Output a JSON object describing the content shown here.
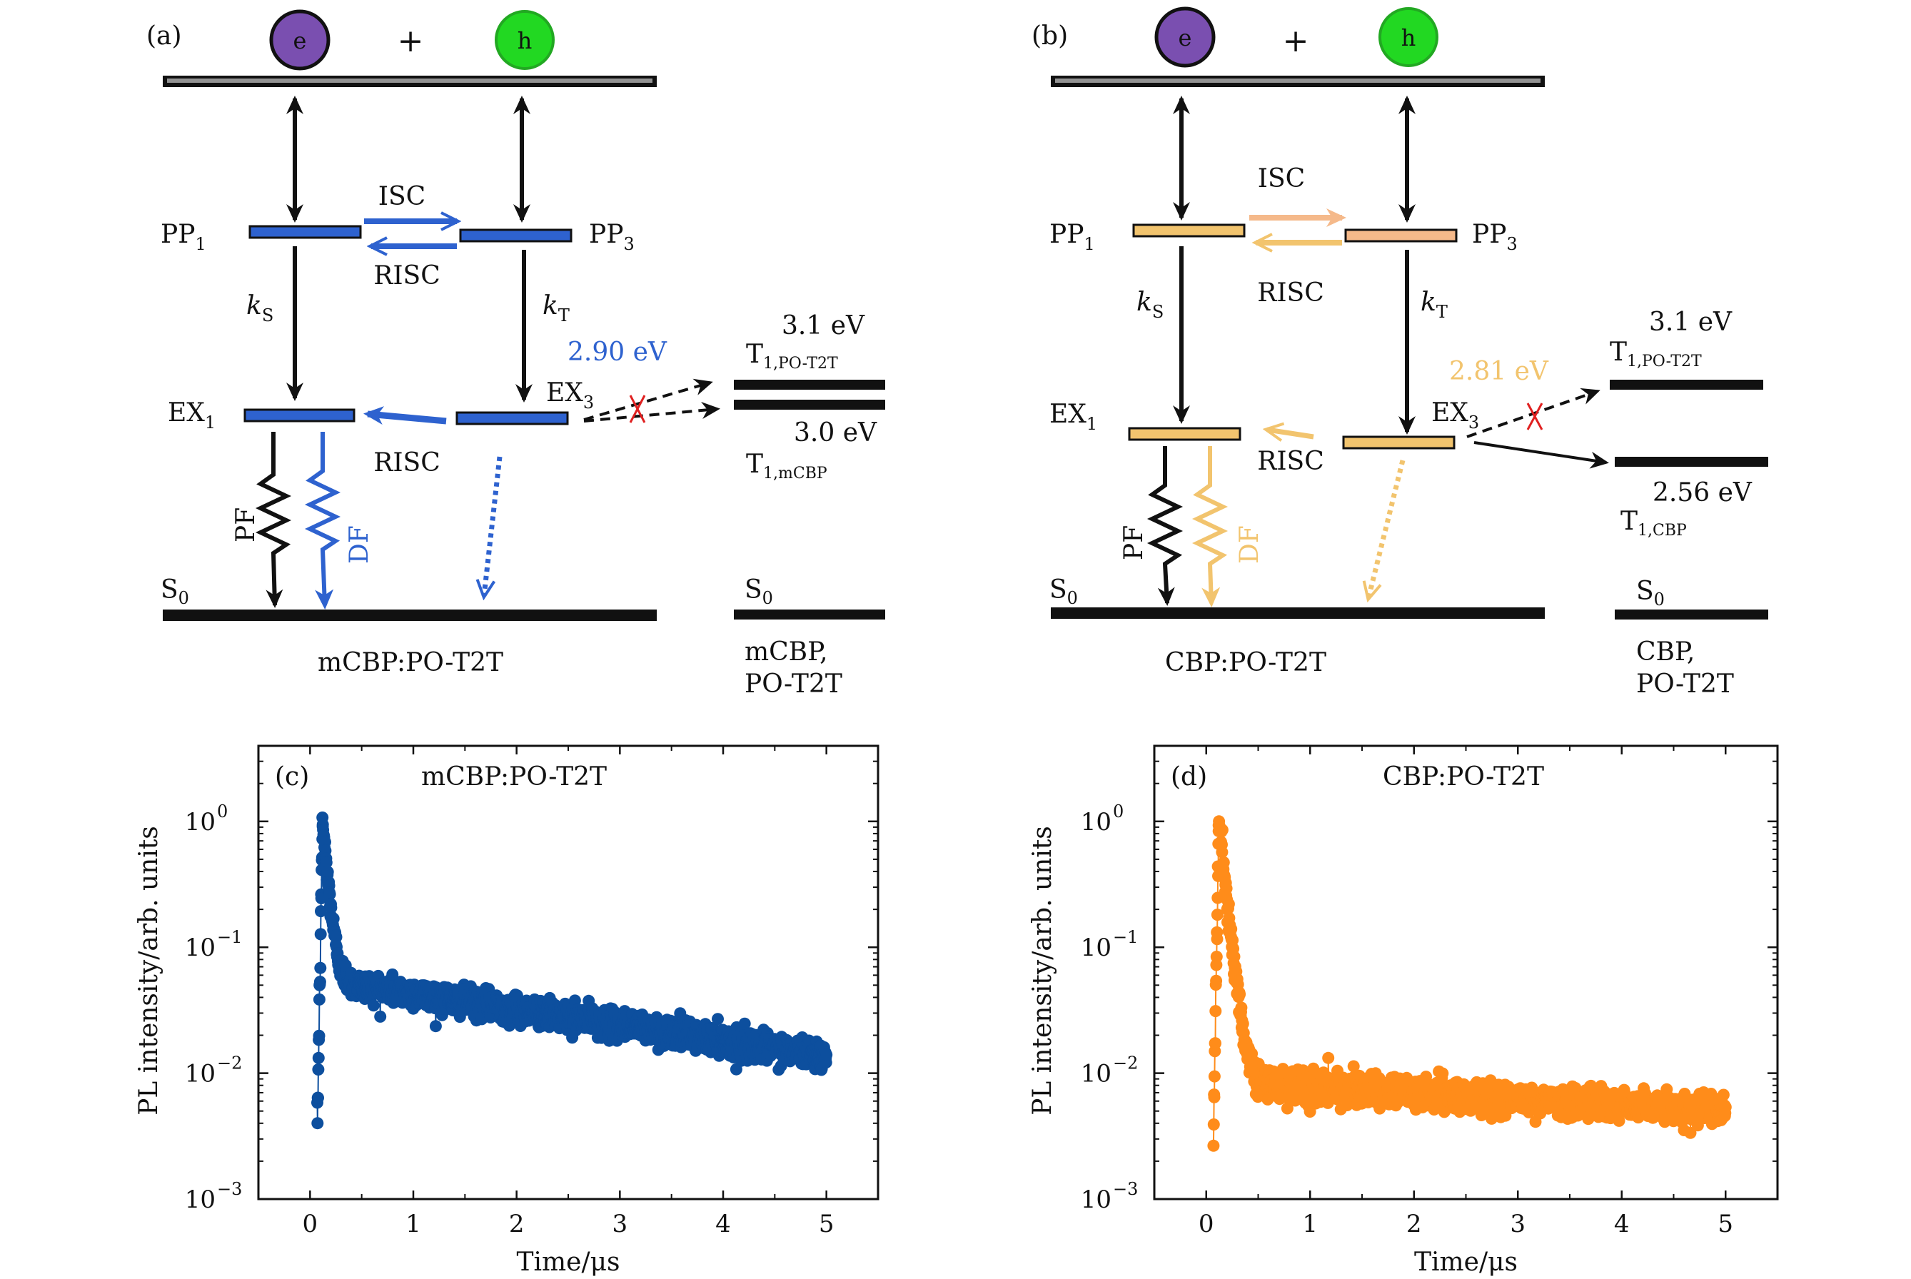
{
  "colors": {
    "blue": "#2e62cf",
    "blue_dark": "#0d4f9e",
    "orange_fill": "#f2c46e",
    "orange_pale": "#f5b98a",
    "orange_data": "#ff8c1a",
    "electron": "#7a4fb0",
    "hole": "#22d822",
    "cross": "#e02020"
  },
  "panel_a": {
    "label": "(a)",
    "electron": "e",
    "plus": "+",
    "hole": "h",
    "pp1": "PP",
    "pp1_sub": "1",
    "pp3": "PP",
    "pp3_sub": "3",
    "isc": "ISC",
    "risc_top": "RISC",
    "ks": "k",
    "ks_sub": "S",
    "kt": "k",
    "kt_sub": "T",
    "ex1": "EX",
    "ex1_sub": "1",
    "ex3": "EX",
    "ex3_sub": "3",
    "risc_mid": "RISC",
    "gap_energy": "2.90 eV",
    "t_high_energy": "3.1 eV",
    "t_high": "T",
    "t_high_sub": "1,PO-T2T",
    "t_low_energy": "3.0 eV",
    "t_low": "T",
    "t_low_sub": "1,mCBP",
    "pf": "PF",
    "df": "DF",
    "s0": "S",
    "s0_sub": "0",
    "s0_right": "S",
    "s0_right_sub": "0",
    "caption": "mCBP:PO-T2T",
    "right_caption_1": "mCBP,",
    "right_caption_2": "PO-T2T"
  },
  "panel_b": {
    "label": "(b)",
    "electron": "e",
    "plus": "+",
    "hole": "h",
    "pp1": "PP",
    "pp1_sub": "1",
    "pp3": "PP",
    "pp3_sub": "3",
    "isc": "ISC",
    "risc_top": "RISC",
    "ks": "k",
    "ks_sub": "S",
    "kt": "k",
    "kt_sub": "T",
    "ex1": "EX",
    "ex1_sub": "1",
    "ex3": "EX",
    "ex3_sub": "3",
    "risc_mid": "RISC",
    "gap_energy": "2.81 eV",
    "t_high_energy": "3.1 eV",
    "t_high": "T",
    "t_high_sub": "1,PO-T2T",
    "t_low_energy": "2.56 eV",
    "t_low": "T",
    "t_low_sub": "1,CBP",
    "pf": "PF",
    "df": "DF",
    "s0": "S",
    "s0_sub": "0",
    "s0_right": "S",
    "s0_right_sub": "0",
    "caption": "CBP:PO-T2T",
    "right_caption_1": "CBP,",
    "right_caption_2": "PO-T2T"
  },
  "chart_data": [
    {
      "id": "c",
      "type": "scatter",
      "panel_label": "(c)",
      "title": "mCBP:PO-T2T",
      "xlabel": "Time/μs",
      "ylabel": "PL intensity/arb. units",
      "xlim": [
        -0.5,
        5.5
      ],
      "ylim_log10": [
        -3,
        0.6
      ],
      "xticks": [
        0,
        1,
        2,
        3,
        4,
        5
      ],
      "xtick_labels": [
        "0",
        "1",
        "2",
        "3",
        "4",
        "5"
      ],
      "ytick_exponents": [
        0,
        -1,
        -2,
        -3
      ],
      "ytick_base": "10",
      "ytick_exp_labels": [
        "0",
        "−1",
        "−2",
        "−3"
      ],
      "color": "#0d4f9e",
      "decay_model": {
        "onset_min": 0.0035,
        "peak_time": 0.12,
        "peak": 1.0,
        "fast_amp": 0.95,
        "fast_tau": 0.045,
        "slow_amp": 0.055,
        "slow_tau": 3.5,
        "end_time": 5.0,
        "noise_dex": 0.055
      }
    },
    {
      "id": "d",
      "type": "scatter",
      "panel_label": "(d)",
      "title": "CBP:PO-T2T",
      "xlabel": "Time/μs",
      "ylabel": "PL intensity/arb. units",
      "xlim": [
        -0.5,
        5.5
      ],
      "ylim_log10": [
        -3,
        0.6
      ],
      "xticks": [
        0,
        1,
        2,
        3,
        4,
        5
      ],
      "xtick_labels": [
        "0",
        "1",
        "2",
        "3",
        "4",
        "5"
      ],
      "ytick_exponents": [
        0,
        -1,
        -2,
        -3
      ],
      "ytick_base": "10",
      "ytick_exp_labels": [
        "0",
        "−1",
        "−2",
        "−3"
      ],
      "color": "#ff8c1a",
      "decay_model": {
        "onset_min": 0.0035,
        "peak_time": 0.12,
        "peak": 1.0,
        "fast_amp": 0.99,
        "fast_tau": 0.055,
        "slow_amp": 0.0085,
        "slow_tau": 9.0,
        "end_time": 5.0,
        "noise_dex": 0.06
      }
    }
  ]
}
